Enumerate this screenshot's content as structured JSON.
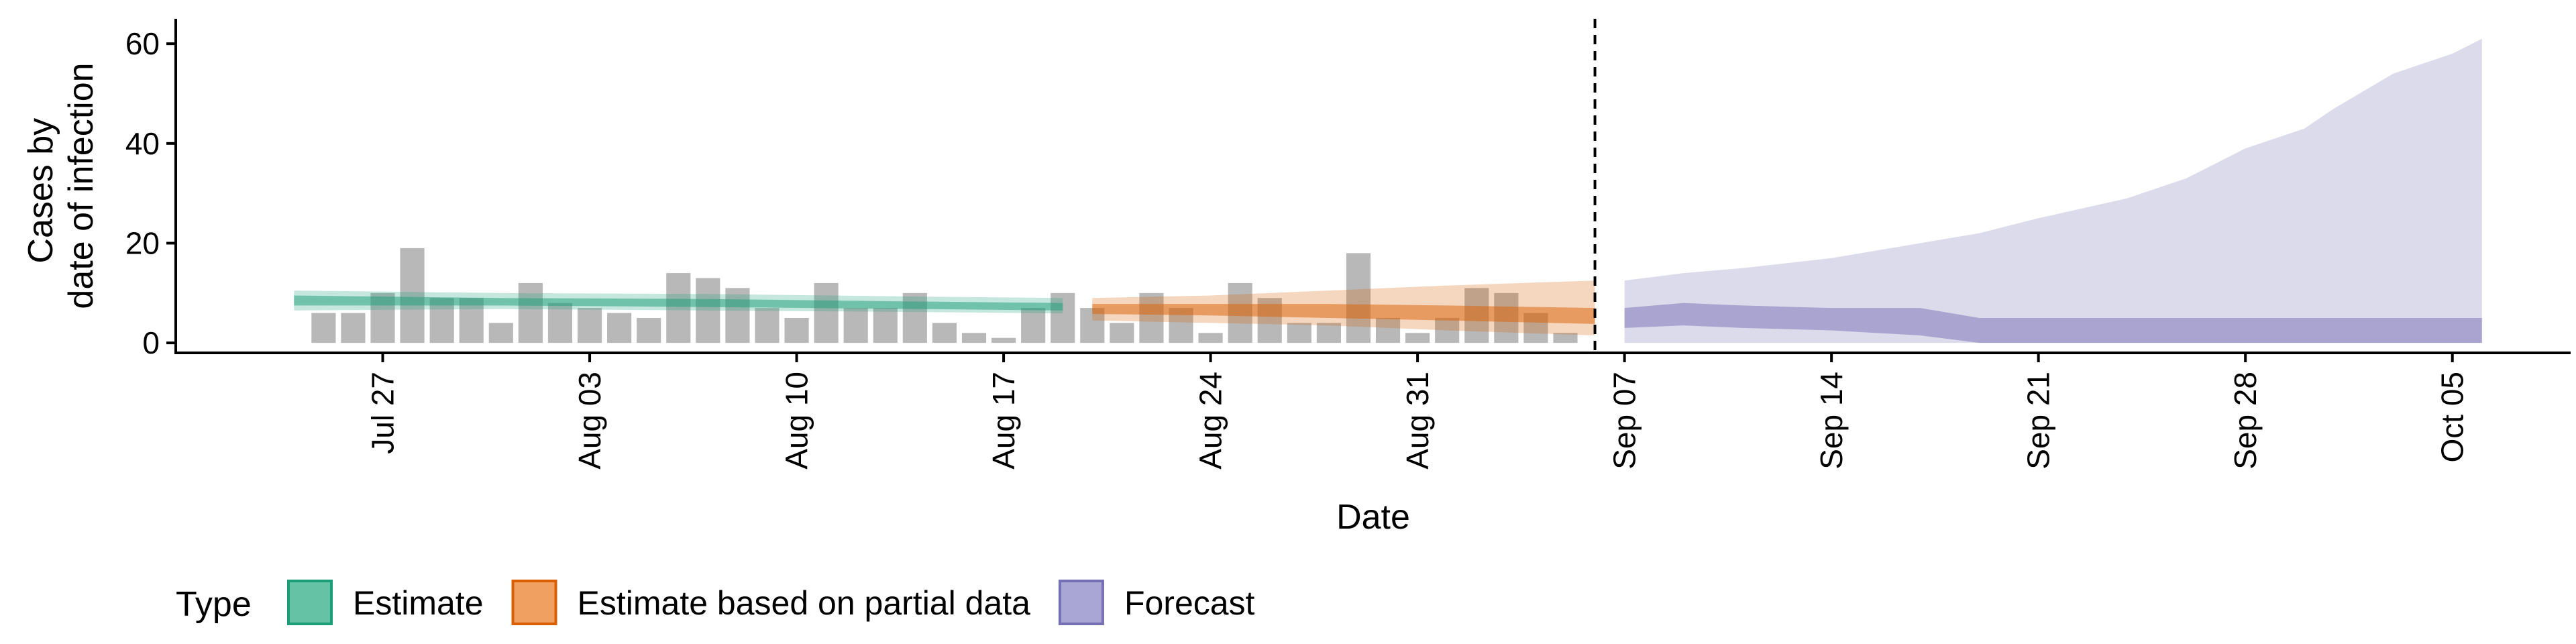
{
  "chart_data": {
    "type": "bar",
    "xlabel": "Date",
    "ylabel_lines": [
      "Cases by",
      "date of infection"
    ],
    "ylim": [
      -2,
      65
    ],
    "x_range": [
      "2021-07-20",
      "2021-10-09"
    ],
    "grid": false,
    "legend_position": "bottom-left",
    "forecast_start_line": "2021-09-06",
    "x_ticks": [
      {
        "date": "2021-07-27",
        "label": "Jul 27"
      },
      {
        "date": "2021-08-03",
        "label": "Aug 03"
      },
      {
        "date": "2021-08-10",
        "label": "Aug 10"
      },
      {
        "date": "2021-08-17",
        "label": "Aug 17"
      },
      {
        "date": "2021-08-24",
        "label": "Aug 24"
      },
      {
        "date": "2021-08-31",
        "label": "Aug 31"
      },
      {
        "date": "2021-09-07",
        "label": "Sep 07"
      },
      {
        "date": "2021-09-14",
        "label": "Sep 14"
      },
      {
        "date": "2021-09-21",
        "label": "Sep 21"
      },
      {
        "date": "2021-09-28",
        "label": "Sep 28"
      },
      {
        "date": "2021-10-05",
        "label": "Oct 05"
      }
    ],
    "y_ticks": [
      {
        "value": 0,
        "label": "0"
      },
      {
        "value": 20,
        "label": "20"
      },
      {
        "value": 40,
        "label": "40"
      },
      {
        "value": 60,
        "label": "60"
      }
    ],
    "observed_cases": {
      "start_date": "2021-07-25",
      "color": "#b8b8b8",
      "values": [
        6,
        6,
        10,
        19,
        9,
        9,
        4,
        12,
        8,
        7,
        6,
        5,
        14,
        13,
        11,
        7,
        5,
        12,
        7,
        7,
        10,
        4,
        2,
        1,
        7,
        10,
        7,
        4,
        10,
        7,
        2,
        12,
        9,
        4,
        4,
        18,
        5,
        2,
        5,
        11,
        10,
        6,
        2
      ]
    },
    "legend": {
      "title": "Type",
      "items": [
        {
          "label": "Estimate",
          "fill": "#66c2a5",
          "stroke": "#1b9e77"
        },
        {
          "label": "Estimate based on partial data",
          "fill": "#f0a060",
          "stroke": "#d95f02"
        },
        {
          "label": "Forecast",
          "fill": "#a9a5d4",
          "stroke": "#7570b3"
        }
      ]
    },
    "series": [
      {
        "name": "Estimate",
        "color": "#1b9e77",
        "dates": [
          "2021-07-24",
          "2021-07-31",
          "2021-08-07",
          "2021-08-14",
          "2021-08-19"
        ],
        "outer_upper": [
          10.5,
          10.0,
          9.8,
          9.3,
          9.0
        ],
        "outer_lower": [
          6.5,
          6.8,
          6.5,
          6.2,
          5.9
        ],
        "inner_upper": [
          9.5,
          9.0,
          8.8,
          8.3,
          8.0
        ],
        "inner_lower": [
          7.5,
          7.5,
          7.2,
          6.8,
          6.5
        ]
      },
      {
        "name": "Estimate based on partial data",
        "color": "#d95f02",
        "dates": [
          "2021-08-20",
          "2021-08-24",
          "2021-08-28",
          "2021-09-01",
          "2021-09-06"
        ],
        "outer_upper": [
          9.0,
          9.5,
          10.5,
          11.5,
          12.5
        ],
        "outer_lower": [
          4.5,
          4.0,
          3.5,
          2.5,
          1.5
        ],
        "inner_upper": [
          7.8,
          7.8,
          7.8,
          7.5,
          7.0
        ],
        "inner_lower": [
          5.8,
          5.5,
          5.0,
          4.5,
          3.8
        ]
      },
      {
        "name": "Forecast",
        "color": "#7570b3",
        "dates": [
          "2021-09-07",
          "2021-09-09",
          "2021-09-11",
          "2021-09-14",
          "2021-09-17",
          "2021-09-19",
          "2021-09-21",
          "2021-09-24",
          "2021-09-26",
          "2021-09-28",
          "2021-09-30",
          "2021-10-01",
          "2021-10-03",
          "2021-10-05",
          "2021-10-06"
        ],
        "outer_upper": [
          12.5,
          14,
          15,
          17,
          20,
          22,
          25,
          29,
          33,
          39,
          43,
          47,
          54,
          58,
          61
        ],
        "outer_lower": [
          0,
          0,
          0,
          0,
          0,
          0,
          0,
          0,
          0,
          0,
          0,
          0,
          0,
          0,
          0
        ],
        "inner_upper": [
          7,
          8,
          7.5,
          7,
          7,
          5,
          5,
          5,
          5,
          5,
          5,
          5,
          5,
          5,
          5
        ],
        "inner_lower": [
          3,
          3.5,
          3,
          2.5,
          1.5,
          0,
          0,
          0,
          0,
          0,
          0,
          0,
          0,
          0,
          0
        ]
      }
    ]
  }
}
